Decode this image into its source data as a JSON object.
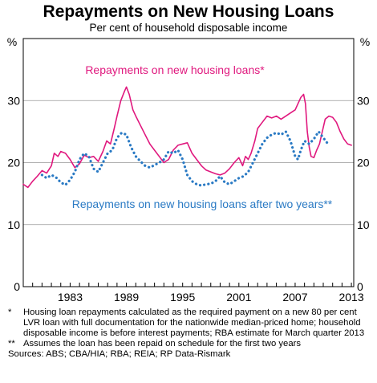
{
  "chart_data": {
    "type": "line",
    "title": "Repayments on New Housing Loans",
    "subtitle": "Per cent of household disposable income",
    "ylabel_left": "%",
    "ylabel_right": "%",
    "ylim": [
      0,
      40
    ],
    "yticks": [
      0,
      10,
      20,
      30
    ],
    "xlim": [
      1978.0,
      2013.25
    ],
    "xticks": [
      "1983",
      "1989",
      "1995",
      "2001",
      "2007",
      "2013"
    ],
    "grid": true,
    "series": [
      {
        "name": "Repayments on new housing loans*",
        "style": "solid",
        "color": "#e0187e",
        "points": [
          [
            1978.0,
            16.5
          ],
          [
            1978.5,
            16.0
          ],
          [
            1979.0,
            17.0
          ],
          [
            1979.5,
            17.8
          ],
          [
            1980.0,
            18.7
          ],
          [
            1980.5,
            18.3
          ],
          [
            1981.0,
            19.5
          ],
          [
            1981.3,
            21.5
          ],
          [
            1981.7,
            21.0
          ],
          [
            1982.0,
            21.8
          ],
          [
            1982.5,
            21.5
          ],
          [
            1983.0,
            20.5
          ],
          [
            1983.5,
            19.2
          ],
          [
            1984.0,
            19.8
          ],
          [
            1984.5,
            21.2
          ],
          [
            1985.0,
            20.8
          ],
          [
            1985.5,
            21.0
          ],
          [
            1986.0,
            20.2
          ],
          [
            1986.5,
            21.8
          ],
          [
            1986.9,
            23.5
          ],
          [
            1987.3,
            23.0
          ],
          [
            1987.7,
            25.5
          ],
          [
            1988.0,
            27.5
          ],
          [
            1988.4,
            30.0
          ],
          [
            1988.8,
            31.5
          ],
          [
            1989.0,
            32.2
          ],
          [
            1989.3,
            31.0
          ],
          [
            1989.7,
            28.5
          ],
          [
            1990.0,
            27.5
          ],
          [
            1990.5,
            26.0
          ],
          [
            1991.0,
            24.5
          ],
          [
            1991.5,
            23.0
          ],
          [
            1992.0,
            22.0
          ],
          [
            1992.5,
            21.0
          ],
          [
            1993.0,
            20.0
          ],
          [
            1993.5,
            20.5
          ],
          [
            1994.0,
            22.0
          ],
          [
            1994.5,
            22.8
          ],
          [
            1995.0,
            23.0
          ],
          [
            1995.5,
            23.2
          ],
          [
            1996.0,
            21.5
          ],
          [
            1996.5,
            20.5
          ],
          [
            1997.0,
            19.5
          ],
          [
            1997.5,
            18.8
          ],
          [
            1998.0,
            18.5
          ],
          [
            1998.5,
            18.2
          ],
          [
            1999.0,
            18.0
          ],
          [
            1999.5,
            18.3
          ],
          [
            2000.0,
            19.0
          ],
          [
            2000.5,
            20.0
          ],
          [
            2001.0,
            20.8
          ],
          [
            2001.4,
            19.5
          ],
          [
            2001.7,
            21.0
          ],
          [
            2002.0,
            20.5
          ],
          [
            2002.3,
            21.5
          ],
          [
            2002.7,
            23.5
          ],
          [
            2003.0,
            25.5
          ],
          [
            2003.5,
            26.5
          ],
          [
            2004.0,
            27.5
          ],
          [
            2004.5,
            27.2
          ],
          [
            2005.0,
            27.5
          ],
          [
            2005.5,
            27.0
          ],
          [
            2006.0,
            27.5
          ],
          [
            2006.5,
            28.0
          ],
          [
            2007.0,
            28.5
          ],
          [
            2007.3,
            29.5
          ],
          [
            2007.6,
            30.5
          ],
          [
            2007.9,
            31.0
          ],
          [
            2008.1,
            29.5
          ],
          [
            2008.3,
            25.0
          ],
          [
            2008.5,
            22.5
          ],
          [
            2008.7,
            21.0
          ],
          [
            2009.0,
            20.8
          ],
          [
            2009.3,
            22.0
          ],
          [
            2009.6,
            23.0
          ],
          [
            2009.9,
            25.0
          ],
          [
            2010.2,
            27.0
          ],
          [
            2010.6,
            27.5
          ],
          [
            2011.0,
            27.3
          ],
          [
            2011.4,
            26.5
          ],
          [
            2011.8,
            25.0
          ],
          [
            2012.2,
            23.8
          ],
          [
            2012.6,
            23.0
          ],
          [
            2013.0,
            22.8
          ]
        ]
      },
      {
        "name": "Repayments on new housing loans after two years**",
        "style": "dotted",
        "color": "#2a7ac4",
        "points": [
          [
            1980.0,
            18.0
          ],
          [
            1980.5,
            17.5
          ],
          [
            1981.0,
            18.0
          ],
          [
            1981.5,
            17.6
          ],
          [
            1982.0,
            16.8
          ],
          [
            1982.5,
            16.4
          ],
          [
            1983.0,
            17.2
          ],
          [
            1983.5,
            18.5
          ],
          [
            1984.0,
            20.5
          ],
          [
            1984.5,
            21.5
          ],
          [
            1985.0,
            21.0
          ],
          [
            1985.5,
            19.0
          ],
          [
            1986.0,
            18.5
          ],
          [
            1986.5,
            20.0
          ],
          [
            1987.0,
            21.5
          ],
          [
            1987.5,
            22.0
          ],
          [
            1988.0,
            24.0
          ],
          [
            1988.5,
            24.8
          ],
          [
            1989.0,
            24.5
          ],
          [
            1989.5,
            22.5
          ],
          [
            1990.0,
            21.0
          ],
          [
            1990.5,
            20.2
          ],
          [
            1991.0,
            19.5
          ],
          [
            1991.5,
            19.2
          ],
          [
            1992.0,
            19.6
          ],
          [
            1992.5,
            20.0
          ],
          [
            1993.0,
            20.5
          ],
          [
            1993.5,
            21.8
          ],
          [
            1994.0,
            21.5
          ],
          [
            1994.5,
            22.0
          ],
          [
            1995.0,
            20.5
          ],
          [
            1995.5,
            18.0
          ],
          [
            1996.0,
            17.0
          ],
          [
            1996.5,
            16.5
          ],
          [
            1997.0,
            16.3
          ],
          [
            1997.5,
            16.5
          ],
          [
            1998.0,
            16.6
          ],
          [
            1998.5,
            17.0
          ],
          [
            1999.0,
            17.8
          ],
          [
            1999.5,
            16.8
          ],
          [
            2000.0,
            16.5
          ],
          [
            2000.5,
            17.0
          ],
          [
            2001.0,
            17.5
          ],
          [
            2001.5,
            17.8
          ],
          [
            2002.0,
            18.5
          ],
          [
            2002.5,
            20.0
          ],
          [
            2003.0,
            21.5
          ],
          [
            2003.5,
            23.0
          ],
          [
            2004.0,
            24.0
          ],
          [
            2004.5,
            24.5
          ],
          [
            2005.0,
            24.8
          ],
          [
            2005.5,
            24.5
          ],
          [
            2006.0,
            25.0
          ],
          [
            2006.5,
            23.5
          ],
          [
            2007.0,
            21.0
          ],
          [
            2007.3,
            20.5
          ],
          [
            2007.6,
            22.0
          ],
          [
            2008.0,
            23.5
          ],
          [
            2008.5,
            23.0
          ],
          [
            2009.0,
            23.8
          ],
          [
            2009.5,
            25.0
          ],
          [
            2010.0,
            24.0
          ],
          [
            2010.5,
            23.0
          ]
        ]
      }
    ],
    "labels": [
      {
        "text": "Repayments on new housing loans*",
        "color": "#e0187e"
      },
      {
        "text": "Repayments on new housing loans after two years**",
        "color": "#2a7ac4"
      }
    ]
  },
  "notes": [
    {
      "mark": "*",
      "text": "Housing loan repayments calculated as the required payment on a new 80 per cent LVR loan with full documentation for the nationwide median-priced home; household disposable income is before interest payments; RBA estimate for March quarter 2013"
    },
    {
      "mark": "**",
      "text": "Assumes the loan has been repaid on schedule for the first two years"
    }
  ],
  "sources": "Sources: ABS; CBA/HIA; RBA; REIA; RP Data-Rismark"
}
